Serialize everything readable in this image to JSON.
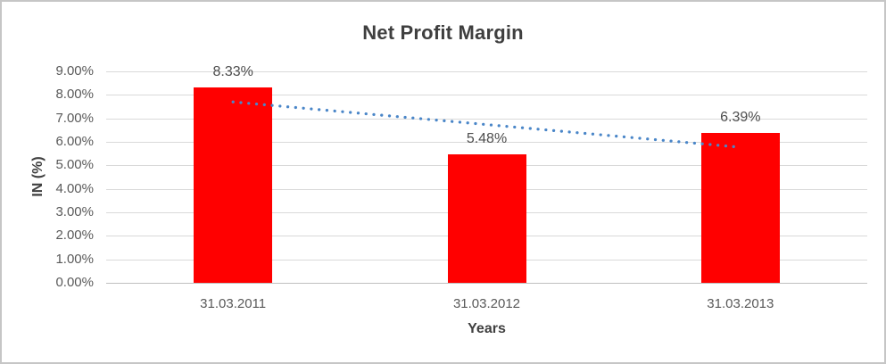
{
  "chart_data": {
    "type": "bar",
    "title": "Net Profit Margin",
    "xlabel": "Years",
    "ylabel": "IN (%)",
    "categories": [
      "31.03.2011",
      "31.03.2012",
      "31.03.2013"
    ],
    "values": [
      8.33,
      5.48,
      6.39
    ],
    "data_labels": [
      "8.33%",
      "5.48%",
      "6.39%"
    ],
    "ylim": [
      0,
      9
    ],
    "ytick_labels": [
      "0.00%",
      "1.00%",
      "2.00%",
      "3.00%",
      "4.00%",
      "5.00%",
      "6.00%",
      "7.00%",
      "8.00%",
      "9.00%"
    ],
    "grid": true,
    "legend": "none",
    "bar_color": "#ff0000",
    "gridline_color": "#d9d9d9",
    "axis_line_color": "#bfbfbf",
    "tick_label_color": "#595959",
    "title_color": "#3f3f3f",
    "trendline": {
      "type": "linear",
      "style": "dotted",
      "color": "#4a86c8",
      "start_value": 7.7,
      "end_value": 5.77
    }
  }
}
